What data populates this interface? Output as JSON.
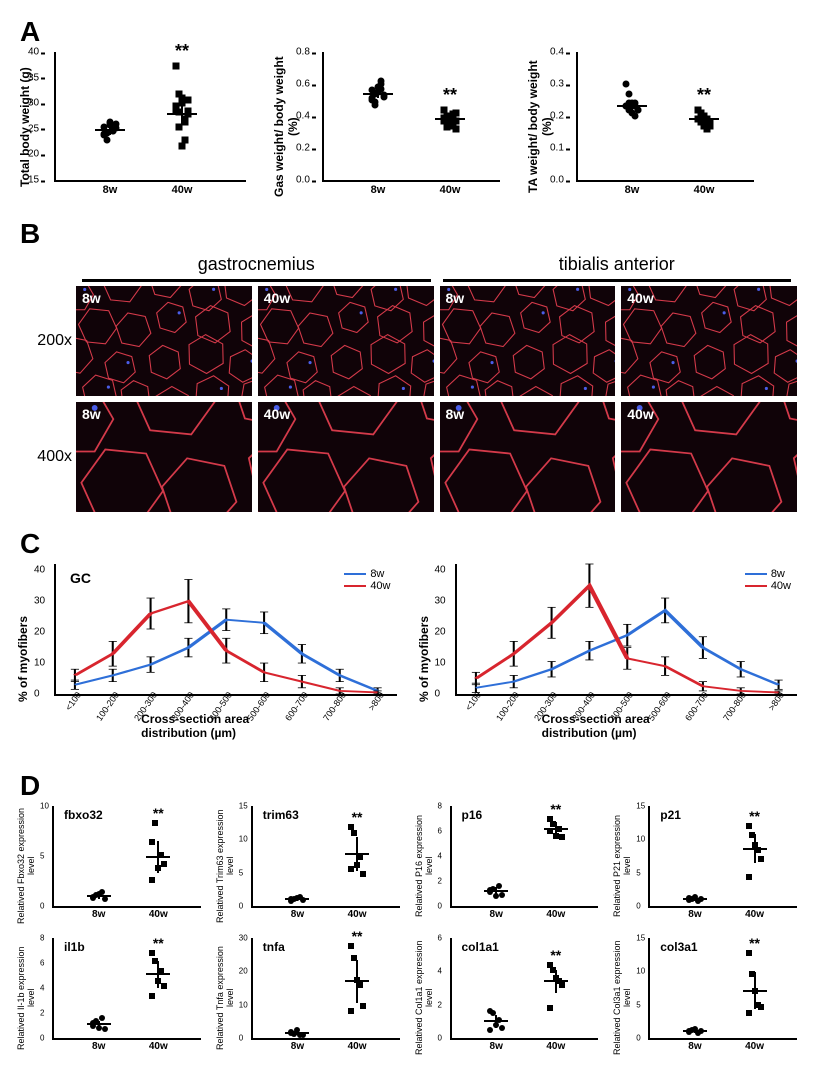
{
  "panels": {
    "A": "A",
    "B": "B",
    "C": "C",
    "D": "D"
  },
  "colors": {
    "blue": "#2e6fd8",
    "red": "#d8252e",
    "black": "#000000",
    "micro_bg": "#100308",
    "micro_stroke": "#d43a4a",
    "micro_nucleus": "#4a5de8"
  },
  "A": {
    "xcats": [
      "8w",
      "40w"
    ],
    "plots": [
      {
        "ylabel": "Total body weight (g)",
        "ymin": 15,
        "ymax": 40,
        "ystep": 5,
        "sig": "**",
        "series": [
          {
            "x": "8w",
            "shape": "circle",
            "points": [
              25.4,
              24.2,
              26.1,
              24.8,
              25.9,
              23.7,
              22.9,
              26.3,
              24.5,
              25.2,
              23.9,
              24.1,
              25.7,
              24.6
            ],
            "mean": 24.8,
            "err": 1.0
          },
          {
            "x": "40w",
            "shape": "square",
            "points": [
              37.2,
              31.8,
              30.1,
              26.3,
              27.9,
              29.4,
              28.2,
              21.6,
              22.8,
              30.6,
              28.7,
              25.4,
              31.1,
              26.9,
              28.5
            ],
            "mean": 27.9,
            "err": 2.1
          }
        ]
      },
      {
        "ylabel": "Gas weight/ body weight (%)",
        "ymin": 0,
        "ymax": 0.8,
        "ystep": 0.2,
        "sig": "**",
        "series": [
          {
            "x": "8w",
            "shape": "circle",
            "points": [
              0.56,
              0.54,
              0.58,
              0.62,
              0.52,
              0.5,
              0.49,
              0.55,
              0.6,
              0.53,
              0.51,
              0.47,
              0.55,
              0.57
            ],
            "mean": 0.54,
            "err": 0.03
          },
          {
            "x": "40w",
            "shape": "square",
            "points": [
              0.44,
              0.4,
              0.38,
              0.35,
              0.42,
              0.37,
              0.33,
              0.36,
              0.41,
              0.32,
              0.39,
              0.38,
              0.4,
              0.34,
              0.37
            ],
            "mean": 0.38,
            "err": 0.03
          }
        ]
      },
      {
        "ylabel": "TA weight/ body weight (%)",
        "ymin": 0,
        "ymax": 0.4,
        "ystep": 0.1,
        "sig": "**",
        "series": [
          {
            "x": "8w",
            "shape": "circle",
            "points": [
              0.3,
              0.27,
              0.24,
              0.23,
              0.22,
              0.23,
              0.24,
              0.21,
              0.2,
              0.22,
              0.23,
              0.22,
              0.23,
              0.24
            ],
            "mean": 0.23,
            "err": 0.015
          },
          {
            "x": "40w",
            "shape": "square",
            "points": [
              0.22,
              0.21,
              0.2,
              0.19,
              0.17,
              0.19,
              0.18,
              0.2,
              0.16,
              0.18,
              0.19,
              0.2,
              0.17,
              0.19,
              0.18
            ],
            "mean": 0.19,
            "err": 0.014
          }
        ]
      }
    ]
  },
  "B": {
    "col_headers": [
      "gastrocnemius",
      "tibialis anterior"
    ],
    "row_labels": [
      "200x",
      "400x"
    ],
    "image_labels": [
      "8w",
      "40w",
      "8w",
      "40w"
    ],
    "cell_size": {
      "200x": 42,
      "400x": 90
    }
  },
  "C": {
    "xlabels": [
      "<100",
      "100-200",
      "200-300",
      "300-400",
      "400-500",
      "500-600",
      "600-700",
      "700-800",
      ">800"
    ],
    "ylabel": "% of myofibers",
    "xaxis_title": "Cross-section area distribution (µm)",
    "ymax": 42,
    "ystep": 10,
    "plots": [
      {
        "inlabel": "GC",
        "series": {
          "8w": [
            3,
            6,
            9.5,
            15,
            24,
            23,
            13,
            6,
            1
          ],
          "40w": [
            6,
            13,
            26,
            30,
            14,
            7,
            4,
            1,
            0.5
          ]
        },
        "err": {
          "8w": [
            1.5,
            2,
            2.5,
            3,
            3.5,
            3.5,
            3,
            2,
            1
          ],
          "40w": [
            2,
            4,
            5,
            7,
            4,
            3,
            2,
            1,
            0.5
          ]
        }
      },
      {
        "inlabel": "",
        "series": {
          "8w": [
            2,
            4,
            8,
            14,
            19,
            27,
            15,
            8,
            3
          ],
          "40w": [
            5,
            13,
            23,
            35,
            11.5,
            9,
            2.5,
            1,
            0.5
          ]
        },
        "err": {
          "8w": [
            1.5,
            2,
            2.5,
            3,
            3.5,
            4,
            3.5,
            2.5,
            1.5
          ],
          "40w": [
            2,
            4,
            5,
            7,
            3.5,
            3,
            1.5,
            1,
            0.5
          ]
        }
      }
    ]
  },
  "D": {
    "xcats": [
      "8w",
      "40w"
    ],
    "plots": [
      {
        "title": "fbxo32",
        "ylabel": "Relatived Fbxo32 expression level",
        "ymax": 10,
        "ystep": 5,
        "sig": "**",
        "series": [
          {
            "x": "8w",
            "shape": "circle",
            "points": [
              0.9,
              1.1,
              1.2,
              1.4,
              0.7,
              0.8
            ],
            "mean": 1.0,
            "err": 0.3
          },
          {
            "x": "40w",
            "shape": "square",
            "points": [
              6.4,
              8.3,
              3.8,
              5.1,
              4.2,
              2.6
            ],
            "mean": 4.9,
            "err": 1.6
          }
        ]
      },
      {
        "title": "trim63",
        "ylabel": "Relatived Trim63 expression level",
        "ymax": 15,
        "ystep": 5,
        "sig": "**",
        "series": [
          {
            "x": "8w",
            "shape": "circle",
            "points": [
              0.8,
              1.0,
              1.2,
              1.4,
              0.9,
              1.1
            ],
            "mean": 1.0,
            "err": 0.3
          },
          {
            "x": "40w",
            "shape": "square",
            "points": [
              11.8,
              11.0,
              6.2,
              7.4,
              4.8,
              5.5
            ],
            "mean": 7.8,
            "err": 2.6
          }
        ]
      },
      {
        "title": "p16",
        "ylabel": "Relatived P16 expression level",
        "ymax": 8,
        "ystep": 2,
        "sig": "**",
        "series": [
          {
            "x": "8w",
            "shape": "circle",
            "points": [
              1.1,
              1.4,
              0.8,
              1.6,
              0.9,
              1.3
            ],
            "mean": 1.2,
            "err": 0.3
          },
          {
            "x": "40w",
            "shape": "square",
            "points": [
              7.0,
              6.6,
              5.6,
              6.2,
              5.5,
              6.0
            ],
            "mean": 6.2,
            "err": 0.5
          }
        ]
      },
      {
        "title": "p21",
        "ylabel": "Relatived P21 expression level",
        "ymax": 15,
        "ystep": 5,
        "sig": "**",
        "series": [
          {
            "x": "8w",
            "shape": "circle",
            "points": [
              0.9,
              1.1,
              1.3,
              0.8,
              1.0,
              1.2
            ],
            "mean": 1.0,
            "err": 0.3
          },
          {
            "x": "40w",
            "shape": "square",
            "points": [
              12.0,
              10.6,
              9.2,
              8.4,
              7.0,
              4.3
            ],
            "mean": 8.6,
            "err": 2.2
          }
        ]
      },
      {
        "title": "il1b",
        "ylabel": "Relatived Il-1b expression level",
        "ymax": 8,
        "ystep": 2,
        "sig": "**",
        "series": [
          {
            "x": "8w",
            "shape": "circle",
            "points": [
              1.0,
              1.4,
              0.8,
              1.6,
              0.7,
              1.2
            ],
            "mean": 1.1,
            "err": 0.3
          },
          {
            "x": "40w",
            "shape": "square",
            "points": [
              6.8,
              6.2,
              4.6,
              5.4,
              4.2,
              3.4
            ],
            "mean": 5.1,
            "err": 1.1
          }
        ]
      },
      {
        "title": "tnfa",
        "ylabel": "Relatived Tnfa expression level",
        "ymax": 30,
        "ystep": 10,
        "sig": "**",
        "series": [
          {
            "x": "8w",
            "shape": "circle",
            "points": [
              1.8,
              1.2,
              2.4,
              1.0,
              0.8,
              1.4
            ],
            "mean": 1.4,
            "err": 0.5
          },
          {
            "x": "40w",
            "shape": "square",
            "points": [
              27.5,
              24.0,
              17.5,
              16.0,
              9.5,
              8.0
            ],
            "mean": 17.0,
            "err": 6.5
          }
        ]
      },
      {
        "title": "col1a1",
        "ylabel": "Relatived Col1a1 expression level",
        "ymax": 6,
        "ystep": 2,
        "sig": "**",
        "series": [
          {
            "x": "8w",
            "shape": "circle",
            "points": [
              1.6,
              1.5,
              0.8,
              1.1,
              0.6,
              0.5
            ],
            "mean": 1.0,
            "err": 0.4
          },
          {
            "x": "40w",
            "shape": "square",
            "points": [
              4.4,
              4.1,
              3.6,
              3.4,
              3.2,
              1.8
            ],
            "mean": 3.4,
            "err": 0.7
          }
        ]
      },
      {
        "title": "col3a1",
        "ylabel": "Relatived Col3a1 expression level",
        "ymax": 15,
        "ystep": 5,
        "sig": "**",
        "series": [
          {
            "x": "8w",
            "shape": "circle",
            "points": [
              1.0,
              1.2,
              1.4,
              0.8,
              1.1,
              0.9
            ],
            "mean": 1.0,
            "err": 0.3
          },
          {
            "x": "40w",
            "shape": "square",
            "points": [
              12.8,
              9.6,
              7.0,
              5.0,
              4.6,
              3.8
            ],
            "mean": 7.1,
            "err": 2.8
          }
        ]
      }
    ]
  }
}
